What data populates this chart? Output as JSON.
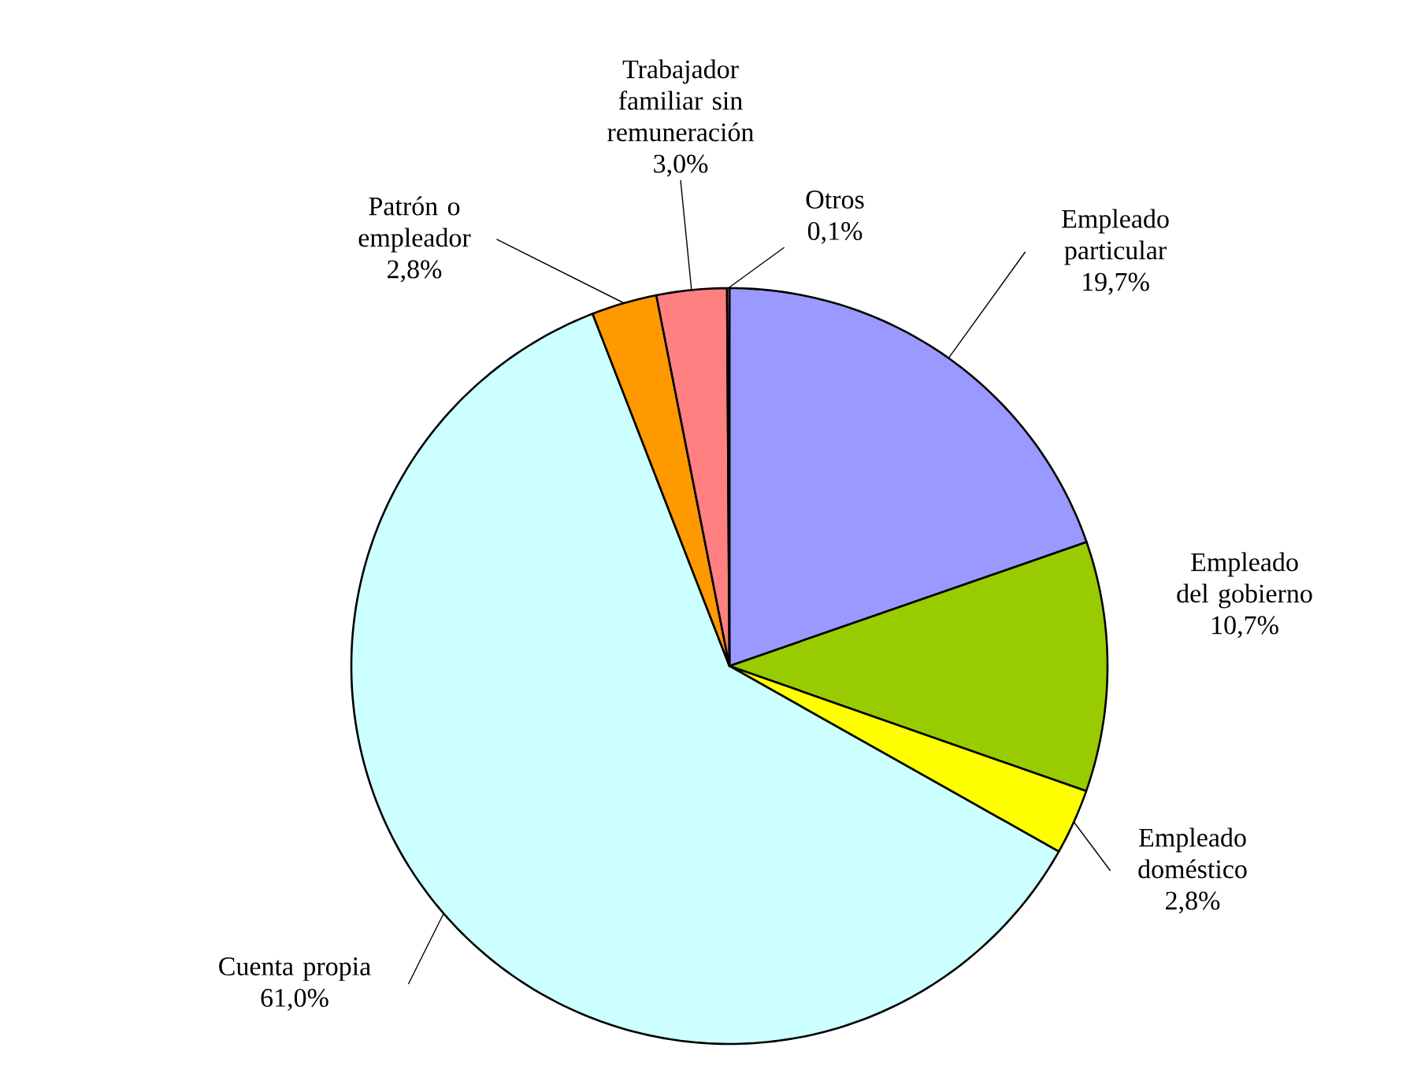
{
  "chart_data": {
    "type": "pie",
    "categories": [
      "Empleado particular",
      "Empleado del gobierno",
      "Empleado doméstico",
      "Cuenta propia",
      "Patrón o empleador",
      "Trabajador familiar sin remuneración",
      "Otros"
    ],
    "values": [
      19.7,
      10.7,
      2.8,
      61.0,
      2.8,
      3.0,
      0.1
    ],
    "value_labels": [
      "19,7%",
      "10,7%",
      "2,8%",
      "61,0%",
      "2,8%",
      "3,0%",
      "0,1%"
    ],
    "colors": [
      "#9999ff",
      "#99cc00",
      "#ffff00",
      "#ccffff",
      "#ff9900",
      "#ff8080",
      "#ffffcc"
    ]
  }
}
